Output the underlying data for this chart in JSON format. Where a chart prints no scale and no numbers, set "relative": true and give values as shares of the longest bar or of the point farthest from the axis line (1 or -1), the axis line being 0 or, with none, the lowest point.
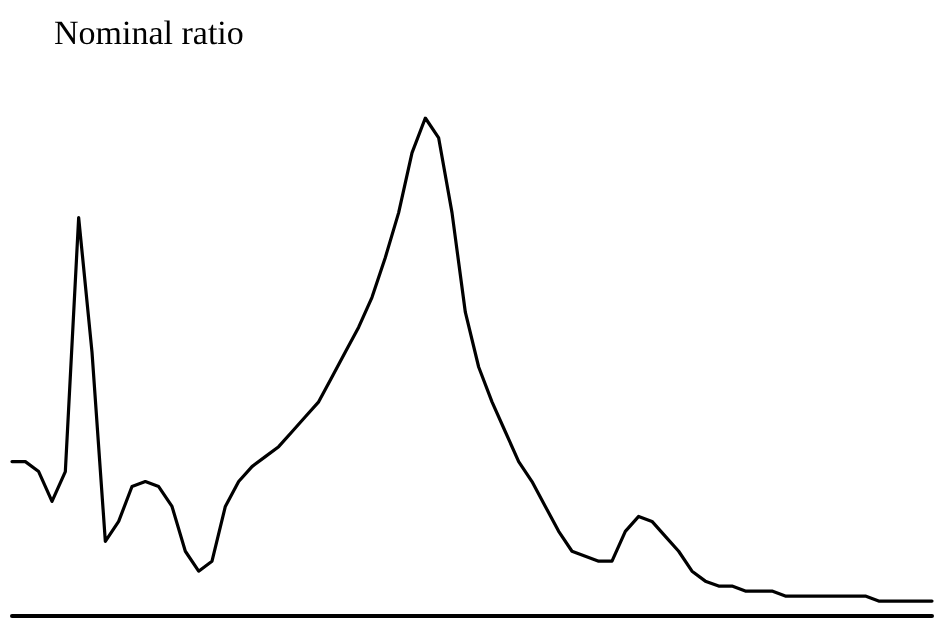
{
  "chart_data": {
    "type": "line",
    "relative": true,
    "ylabel": "Nominal ratio",
    "categories": [
      null,
      null,
      null,
      null,
      null,
      null,
      null,
      null,
      null,
      null,
      null,
      null,
      null,
      null,
      null,
      null,
      null,
      null,
      null,
      null,
      null,
      null,
      null,
      null,
      null,
      null,
      null,
      null,
      null,
      null,
      null,
      null,
      null,
      null,
      null,
      null,
      null,
      null,
      null,
      null,
      null,
      null,
      null,
      null,
      null,
      null,
      null,
      null,
      null,
      null,
      null,
      null,
      null,
      null,
      null,
      null,
      null,
      null,
      null,
      null,
      null,
      null,
      null,
      null,
      null,
      null,
      null,
      null,
      null,
      null
    ],
    "series": [
      {
        "color": "#000000",
        "values": [
          0.31,
          0.31,
          0.29,
          0.23,
          0.29,
          0.8,
          0.53,
          0.15,
          0.19,
          0.26,
          0.27,
          0.26,
          0.22,
          0.13,
          0.09,
          0.11,
          0.22,
          0.27,
          0.3,
          0.32,
          0.34,
          0.37,
          0.4,
          0.43,
          0.48,
          0.53,
          0.58,
          0.64,
          0.72,
          0.81,
          0.93,
          1.0,
          0.96,
          0.81,
          0.61,
          0.5,
          0.43,
          0.37,
          0.31,
          0.27,
          0.22,
          0.17,
          0.13,
          0.12,
          0.11,
          0.11,
          0.17,
          0.2,
          0.19,
          0.16,
          0.13,
          0.09,
          0.07,
          0.06,
          0.06,
          0.05,
          0.05,
          0.05,
          0.04,
          0.04,
          0.04,
          0.04,
          0.04,
          0.04,
          0.04,
          0.03,
          0.03,
          0.03,
          0.03,
          0.03
        ]
      }
    ],
    "grid": false,
    "marker": "none",
    "line_style": "solid"
  }
}
